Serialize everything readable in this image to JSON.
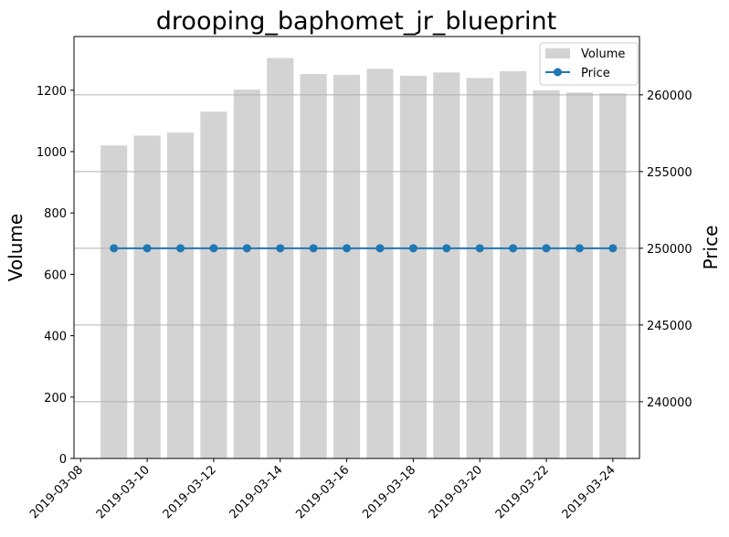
{
  "chart_data": {
    "type": "bar",
    "title": "drooping_baphomet_jr_blueprint",
    "xlabel": "",
    "ylabel": "Volume",
    "y2label": "Price",
    "x_ticks": [
      "2019-03-08",
      "2019-03-10",
      "2019-03-12",
      "2019-03-14",
      "2019-03-16",
      "2019-03-18",
      "2019-03-20",
      "2019-03-22",
      "2019-03-24"
    ],
    "ylim": [
      0,
      1375
    ],
    "y_ticks": [
      0,
      200,
      400,
      600,
      800,
      1000,
      1200
    ],
    "y2lim": [
      236300,
      263800
    ],
    "y2_ticks": [
      240000,
      245000,
      250000,
      255000,
      260000
    ],
    "grid": "horizontal lines on secondary axis",
    "legend_position": "top-right",
    "colors": {
      "volume": "#d3d3d3",
      "price": "#1f77b4"
    },
    "x": [
      "2019-03-09",
      "2019-03-10",
      "2019-03-11",
      "2019-03-12",
      "2019-03-13",
      "2019-03-14",
      "2019-03-15",
      "2019-03-16",
      "2019-03-17",
      "2019-03-18",
      "2019-03-19",
      "2019-03-20",
      "2019-03-21",
      "2019-03-22",
      "2019-03-23",
      "2019-03-24"
    ],
    "series": [
      {
        "name": "Volume",
        "type": "bar",
        "axis": "left",
        "values": [
          1020,
          1052,
          1062,
          1130,
          1202,
          1305,
          1253,
          1250,
          1270,
          1247,
          1258,
          1240,
          1262,
          1200,
          1193,
          1190
        ]
      },
      {
        "name": "Price",
        "type": "line",
        "axis": "right",
        "values": [
          250000,
          250000,
          250000,
          250000,
          250000,
          250000,
          250000,
          250000,
          250000,
          250000,
          250000,
          250000,
          250000,
          250000,
          250000,
          250000
        ]
      }
    ]
  }
}
